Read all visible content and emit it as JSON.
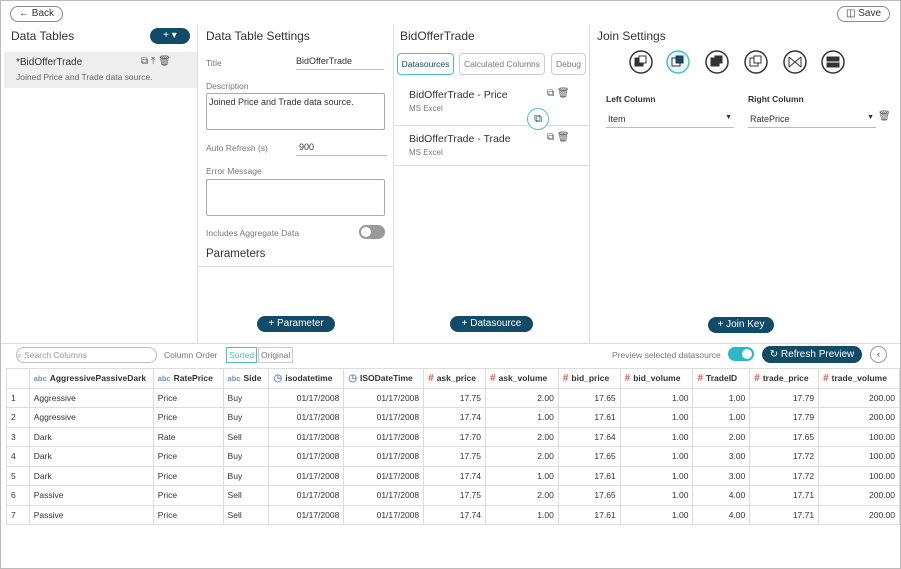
{
  "toolbar": {
    "back": "Back",
    "save": "Save"
  },
  "data_tables": {
    "title": "Data Tables",
    "items": [
      {
        "name": "*BidOfferTrade",
        "description": "Joined Price and Trade data source."
      }
    ]
  },
  "settings": {
    "title": "Data Table Settings",
    "title_label": "Title",
    "title_value": "BidOfferTrade",
    "description_label": "Description",
    "description_value": "Joined Price and Trade data source.",
    "auto_refresh_label": "Auto Refresh (s)",
    "auto_refresh_value": "900",
    "error_label": "Error Message",
    "aggregate_label": "Includes Aggregate Data",
    "parameters_title": "Parameters",
    "add_parameter": "Parameter"
  },
  "datasources": {
    "title": "BidOfferTrade",
    "tabs": [
      "Datasources",
      "Calculated Columns",
      "Debug"
    ],
    "items": [
      {
        "name": "BidOfferTrade - Price",
        "type": "MS Excel"
      },
      {
        "name": "BidOfferTrade - Trade",
        "type": "MS Excel"
      }
    ],
    "add": "Datasource"
  },
  "join": {
    "title": "Join Settings",
    "left_label": "Left Column",
    "right_label": "Right Column",
    "left_value": "Item",
    "right_value": "RatePrice",
    "add": "Join Key"
  },
  "preview": {
    "search_placeholder": "Search Columns",
    "column_order_label": "Column Order",
    "order_options": [
      "Sorted",
      "Original"
    ],
    "preview_label": "Preview selected datasource",
    "refresh": "Refresh Preview"
  },
  "table": {
    "columns": [
      {
        "type": "abc",
        "name": "AggressivePassiveDark"
      },
      {
        "type": "abc",
        "name": "RatePrice"
      },
      {
        "type": "abc",
        "name": "Side"
      },
      {
        "name": "isodatetime"
      },
      {
        "name": "ISODateTime"
      },
      {
        "type": "#",
        "name": "ask_price"
      },
      {
        "type": "#",
        "name": "ask_volume"
      },
      {
        "type": "#",
        "name": "bid_price"
      },
      {
        "type": "#",
        "name": "bid_volume"
      },
      {
        "type": "#",
        "name": "TradeID"
      },
      {
        "type": "#",
        "name": "trade_price"
      },
      {
        "type": "#",
        "name": "trade_volume"
      }
    ],
    "rows": [
      [
        "1",
        "Aggressive",
        "Price",
        "Buy",
        "01/17/2008",
        "01/17/2008",
        "17.75",
        "2.00",
        "17.65",
        "1.00",
        "1.00",
        "17.79",
        "200.00"
      ],
      [
        "2",
        "Aggressive",
        "Price",
        "Buy",
        "01/17/2008",
        "01/17/2008",
        "17.74",
        "1.00",
        "17.61",
        "1.00",
        "1.00",
        "17.79",
        "200.00"
      ],
      [
        "3",
        "Dark",
        "Rate",
        "Sell",
        "01/17/2008",
        "01/17/2008",
        "17.70",
        "2.00",
        "17.64",
        "1.00",
        "2.00",
        "17.65",
        "100.00"
      ],
      [
        "4",
        "Dark",
        "Price",
        "Buy",
        "01/17/2008",
        "01/17/2008",
        "17.75",
        "2.00",
        "17.65",
        "1.00",
        "3.00",
        "17.72",
        "100.00"
      ],
      [
        "5",
        "Dark",
        "Price",
        "Buy",
        "01/17/2008",
        "01/17/2008",
        "17.74",
        "1.00",
        "17.61",
        "1.00",
        "3.00",
        "17.72",
        "100.00"
      ],
      [
        "6",
        "Passive",
        "Price",
        "Sell",
        "01/17/2008",
        "01/17/2008",
        "17.75",
        "2.00",
        "17.65",
        "1.00",
        "4.00",
        "17.71",
        "200.00"
      ],
      [
        "7",
        "Passive",
        "Price",
        "Sell",
        "01/17/2008",
        "01/17/2008",
        "17.74",
        "1.00",
        "17.61",
        "1.00",
        "4.00",
        "17.71",
        "200.00"
      ]
    ]
  }
}
